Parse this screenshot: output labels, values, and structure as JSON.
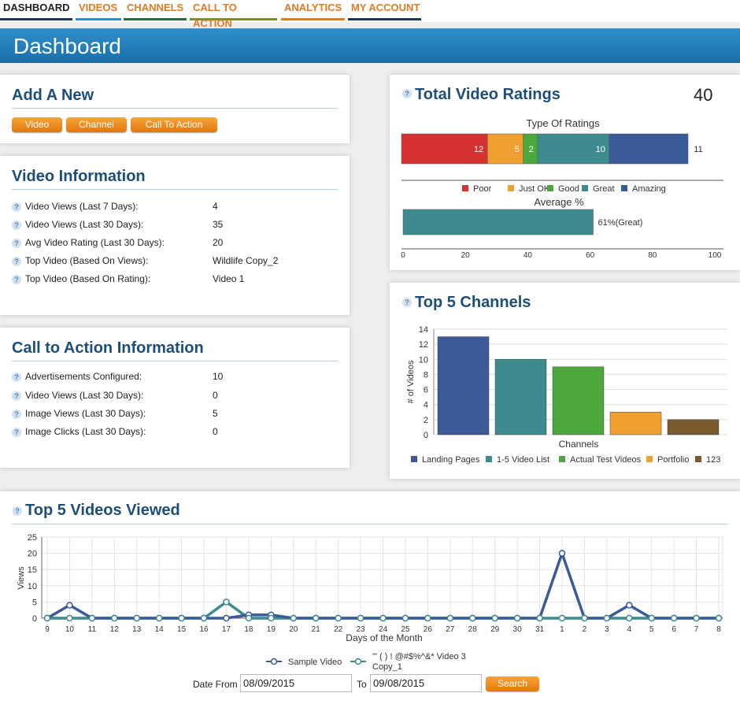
{
  "nav": [
    {
      "label": "DASHBOARD",
      "color": "#222222",
      "border": "#17375e"
    },
    {
      "label": "VIDEOS",
      "color": "#e07b22",
      "border": "#2f8fcc"
    },
    {
      "label": "CHANNELS",
      "color": "#e07b22",
      "border": "#2b6a3b"
    },
    {
      "label": "CALL TO ACTION",
      "color": "#e07b22",
      "border": "#7b8c2d"
    },
    {
      "label": "ANALYTICS",
      "color": "#e07b22",
      "border": "#e07b22"
    },
    {
      "label": "MY ACCOUNT",
      "color": "#e07b22",
      "border": "#17375e"
    }
  ],
  "page_title": "Dashboard",
  "add_new": {
    "title": "Add A New",
    "buttons": [
      "Video",
      "Channel",
      "Call To Action"
    ]
  },
  "video_info": {
    "title": "Video Information",
    "rows": [
      {
        "label": "Video Views (Last 7 Days):",
        "value": "4"
      },
      {
        "label": "Video Views (Last 30 Days):",
        "value": "35"
      },
      {
        "label": "Avg Video Rating (Last 30 Days):",
        "value": "20"
      },
      {
        "label": "Top Video (Based On Views):",
        "value": "Wildlife Copy_2"
      },
      {
        "label": "Top Video (Based On Rating):",
        "value": "Video 1"
      }
    ]
  },
  "cta_info": {
    "title": "Call to Action Information",
    "rows": [
      {
        "label": "Advertisements Configured:",
        "value": "10"
      },
      {
        "label": "Video Views (Last 30 Days):",
        "value": "0"
      },
      {
        "label": "Image Views (Last 30 Days):",
        "value": "5"
      },
      {
        "label": "Image Clicks (Last 30 Days):",
        "value": "0"
      }
    ]
  },
  "ratings": {
    "title": "Total Video Ratings",
    "total": "40",
    "sub": "Type Of Ratings",
    "avg_title": "Average %",
    "avg_label": "61%(Great)"
  },
  "channels": {
    "title": "Top 5 Channels"
  },
  "videos": {
    "title": "Top 5 Videos Viewed"
  },
  "date_filter": {
    "from_label": "Date From",
    "from_value": "08/09/2015",
    "to_label": "To",
    "to_value": "09/08/2015",
    "search_label": "Search"
  },
  "chart_data": [
    {
      "type": "bar",
      "title": "Type Of Ratings",
      "stacked": true,
      "series": [
        {
          "name": "Poor",
          "values": [
            12
          ],
          "color": "#d63232"
        },
        {
          "name": "Just OK",
          "values": [
            5
          ],
          "color": "#f0a030"
        },
        {
          "name": "Good",
          "values": [
            2
          ],
          "color": "#4ca83c"
        },
        {
          "name": "Great",
          "values": [
            10
          ],
          "color": "#3d8a8f"
        },
        {
          "name": "Amazing",
          "values": [
            11
          ],
          "color": "#3a5a98"
        }
      ],
      "legend": "bottom"
    },
    {
      "type": "bar",
      "title": "Average %",
      "values": [
        61
      ],
      "data_label": "61%(Great)",
      "color": "#3d8a8f",
      "xlim": [
        0,
        100
      ],
      "xticks": [
        0,
        20,
        40,
        60,
        80,
        100
      ]
    },
    {
      "type": "bar",
      "xlabel": "Channels",
      "ylabel": "# of Videos",
      "ylim": [
        0,
        14
      ],
      "yticks": [
        0,
        2,
        4,
        6,
        8,
        10,
        12,
        14
      ],
      "series": [
        {
          "name": "Landing Pages",
          "values": [
            13
          ],
          "color": "#3a5a98"
        },
        {
          "name": "1-5 Video List",
          "values": [
            10
          ],
          "color": "#3d8a8f"
        },
        {
          "name": "Actual Test Videos",
          "values": [
            9
          ],
          "color": "#4ca83c"
        },
        {
          "name": "Portfolio",
          "values": [
            3
          ],
          "color": "#f0a030"
        },
        {
          "name": "123",
          "values": [
            2
          ],
          "color": "#7a5a2e"
        }
      ],
      "legend": "bottom"
    },
    {
      "type": "line",
      "xlabel": "Days of the Month",
      "ylabel": "Views",
      "ylim": [
        0,
        25
      ],
      "yticks": [
        0,
        5,
        10,
        15,
        20,
        25
      ],
      "x": [
        "9",
        "10",
        "11",
        "12",
        "13",
        "14",
        "15",
        "16",
        "17",
        "18",
        "19",
        "20",
        "21",
        "22",
        "23",
        "24",
        "25",
        "26",
        "27",
        "28",
        "29",
        "30",
        "31",
        "1",
        "2",
        "3",
        "4",
        "5",
        "6",
        "7",
        "8"
      ],
      "series": [
        {
          "name": "Sample Video",
          "color": "#3a5a98",
          "values": [
            0,
            4,
            0,
            0,
            0,
            0,
            0,
            0,
            0,
            1,
            1,
            0,
            0,
            0,
            0,
            0,
            0,
            0,
            0,
            0,
            0,
            0,
            0,
            20,
            0,
            0,
            4,
            0,
            0,
            0,
            0
          ]
        },
        {
          "name": "\"' ( ) ! @#$%^&* Video 3 Copy_1",
          "color": "#3d8a8f",
          "values": [
            0,
            0,
            0,
            0,
            0,
            0,
            0,
            0,
            5,
            0,
            0,
            0,
            0,
            0,
            0,
            0,
            0,
            0,
            0,
            0,
            0,
            0,
            0,
            0,
            0,
            0,
            0,
            0,
            0,
            0,
            0
          ]
        }
      ],
      "legend": "bottom"
    }
  ]
}
